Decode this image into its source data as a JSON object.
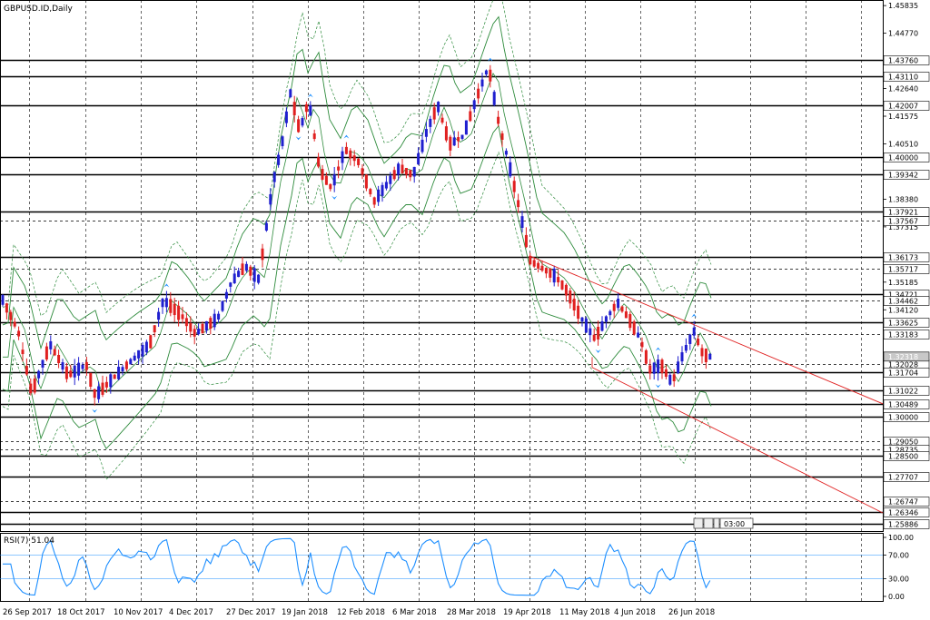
{
  "chart_title": "GBPUSD.ID,Daily",
  "rsi_title": "RSI(7) 51.04",
  "timer_label": "03:00",
  "colors": {
    "bull": "#1f1fcf",
    "bear": "#e02020",
    "band": "#2e8b3c",
    "rsi": "#1e8fff",
    "fractal": "#1e90ff",
    "trend": "#e02020",
    "grid": "#000000",
    "level_price_box": "#000000"
  },
  "chart_data": [
    {
      "type": "candlestick",
      "title": "GBPUSD.ID,Daily",
      "ylim": [
        1.256,
        1.4605
      ],
      "y_ticks": [
        1.45835,
        1.4477,
        1.4264,
        1.41575,
        1.4051,
        1.3838,
        1.37315,
        1.35185,
        1.3412
      ],
      "x_ticks": [
        "26 Sep 2017",
        "18 Oct 2017",
        "10 Nov 2017",
        "4 Dec 2017",
        "27 Dec 2017",
        "19 Jan 2018",
        "12 Feb 2018",
        "6 Mar 2018",
        "28 Mar 2018",
        "19 Apr 2018",
        "11 May 2018",
        "4 Jun 2018",
        "26 Jun 2018"
      ],
      "horizontal_levels": [
        {
          "price": 1.4376,
          "style": "solid"
        },
        {
          "price": 1.4311,
          "style": "solid"
        },
        {
          "price": 1.42007,
          "style": "solid"
        },
        {
          "price": 1.4,
          "style": "solid"
        },
        {
          "price": 1.39342,
          "style": "solid"
        },
        {
          "price": 1.37921,
          "style": "solid"
        },
        {
          "price": 1.37567,
          "style": "dashed"
        },
        {
          "price": 1.36173,
          "style": "solid"
        },
        {
          "price": 1.35717,
          "style": "dashed"
        },
        {
          "price": 1.34721,
          "style": "solid"
        },
        {
          "price": 1.34462,
          "style": "dashed"
        },
        {
          "price": 1.33625,
          "style": "solid"
        },
        {
          "price": 1.33183,
          "style": "dashed"
        },
        {
          "price": 1.32028,
          "style": "dashed"
        },
        {
          "price": 1.31704,
          "style": "solid"
        },
        {
          "price": 1.31022,
          "style": "solid"
        },
        {
          "price": 1.30489,
          "style": "solid"
        },
        {
          "price": 1.3,
          "style": "solid"
        },
        {
          "price": 1.2905,
          "style": "dashed"
        },
        {
          "price": 1.28735,
          "style": "dashed"
        },
        {
          "price": 1.285,
          "style": "solid"
        },
        {
          "price": 1.27707,
          "style": "solid"
        },
        {
          "price": 1.26747,
          "style": "dashed"
        },
        {
          "price": 1.26346,
          "style": "solid"
        },
        {
          "price": 1.25886,
          "style": "solid"
        }
      ],
      "current_price": 1.32318,
      "trend_lines": [
        {
          "from": [
            "Apr 2018",
            1.362
          ],
          "to": [
            "Aug 2018",
            1.305
          ]
        },
        {
          "from": [
            "May 2018",
            1.319
          ],
          "to": [
            "Aug 2018",
            1.263
          ]
        }
      ]
    },
    {
      "type": "line",
      "title": "RSI(7) 51.04",
      "ylim": [
        0,
        100
      ],
      "y_ticks": [
        100.0,
        70.0,
        30.0,
        0.0
      ],
      "levels": [
        70,
        30
      ],
      "current": 51.04
    }
  ]
}
